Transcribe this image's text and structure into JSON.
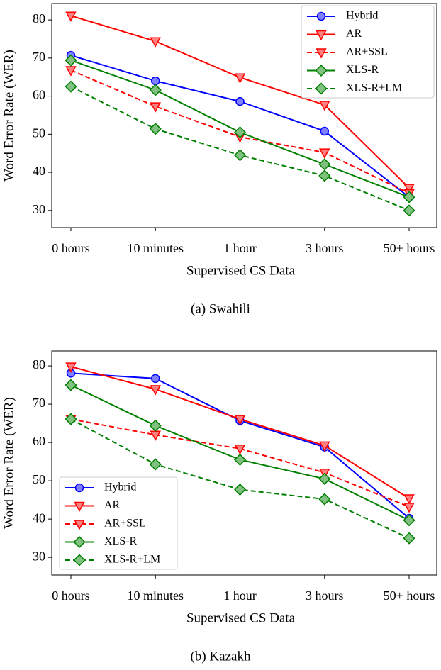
{
  "chart_data": [
    {
      "type": "line",
      "caption": "(a) Swahili",
      "x_label": "Supervised CS Data",
      "y_label": "Word Error Rate (WER)",
      "categories": [
        "0 hours",
        "10 minutes",
        "1 hour",
        "3 hours",
        "50+ hours"
      ],
      "ylim": [
        25.5,
        84.3
      ],
      "yticks": [
        30,
        40,
        50,
        60,
        70,
        80
      ],
      "legend": "upper right",
      "series": [
        {
          "name": "Hybrid",
          "color": "#0000ff",
          "dash": false,
          "marker": "circle",
          "values": [
            70.7,
            64.0,
            58.6,
            50.8,
            33.5
          ]
        },
        {
          "name": "AR",
          "color": "#ff0000",
          "dash": false,
          "marker": "triangle",
          "values": [
            81.1,
            74.4,
            64.9,
            57.7,
            35.9
          ]
        },
        {
          "name": "AR+SSL",
          "color": "#ff0000",
          "dash": true,
          "marker": "triangle",
          "values": [
            66.8,
            57.3,
            49.3,
            45.2,
            34.5
          ]
        },
        {
          "name": "XLS-R",
          "color": "#008000",
          "dash": false,
          "marker": "diamond",
          "values": [
            69.4,
            61.6,
            50.5,
            42.1,
            33.5
          ]
        },
        {
          "name": "XLS-R+LM",
          "color": "#008000",
          "dash": true,
          "marker": "diamond",
          "values": [
            62.5,
            51.4,
            44.5,
            39.1,
            30.0
          ]
        }
      ]
    },
    {
      "type": "line",
      "caption": "(b) Kazakh",
      "x_label": "Supervised CS Data",
      "y_label": "Word Error Rate (WER)",
      "categories": [
        "0 hours",
        "10 minutes",
        "1 hour",
        "3 hours",
        "50+ hours"
      ],
      "ylim": [
        25.4,
        83.9
      ],
      "yticks": [
        30,
        40,
        50,
        60,
        70,
        80
      ],
      "legend": "lower left",
      "series": [
        {
          "name": "Hybrid",
          "color": "#0000ff",
          "dash": false,
          "marker": "circle",
          "values": [
            78.1,
            76.7,
            65.7,
            58.8,
            40.2
          ]
        },
        {
          "name": "AR",
          "color": "#ff0000",
          "dash": false,
          "marker": "triangle",
          "values": [
            79.8,
            73.9,
            66.1,
            59.2,
            45.4
          ]
        },
        {
          "name": "AR+SSL",
          "color": "#ff0000",
          "dash": true,
          "marker": "triangle",
          "values": [
            66.1,
            62.0,
            58.4,
            52.1,
            43.2
          ]
        },
        {
          "name": "XLS-R",
          "color": "#008000",
          "dash": false,
          "marker": "diamond",
          "values": [
            75.0,
            64.4,
            55.5,
            50.5,
            39.7
          ]
        },
        {
          "name": "XLS-R+LM",
          "color": "#008000",
          "dash": true,
          "marker": "diamond",
          "values": [
            66.1,
            54.3,
            47.7,
            45.2,
            35.0
          ]
        }
      ]
    }
  ]
}
